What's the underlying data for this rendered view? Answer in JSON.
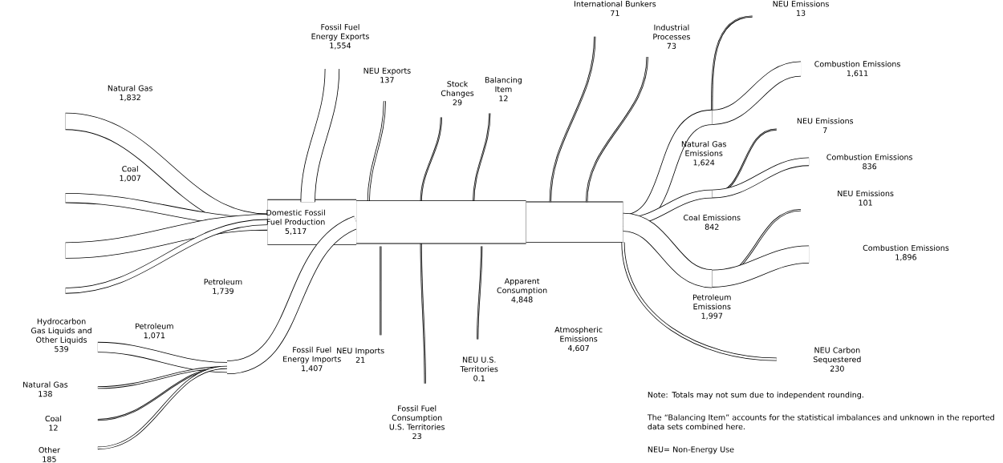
{
  "chart_data": {
    "type": "other",
    "categories": [
      "Natural Gas",
      "Coal",
      "Petroleum",
      "Hydrocarbon Gas Liquids and Other Liquids",
      "Domestic Fossil Fuel Production",
      "Fossil Fuel Energy Imports",
      "Petroleum",
      "Natural Gas",
      "Coal",
      "Other",
      "Fossil Fuel Energy Exports",
      "NEU Exports",
      "Stock Changes",
      "Balancing Item",
      "NEU Imports",
      "Fossil Fuel Consumption U.S. Territories",
      "NEU U.S. Territories",
      "Apparent Consumption",
      "Atmospheric Emissions",
      "International Bunkers",
      "Industrial Processes",
      "NEU Emissions",
      "Combustion Emissions",
      "Natural Gas Emissions",
      "NEU Emissions",
      "Combustion Emissions",
      "Coal Emissions",
      "NEU Emissions",
      "Combustion Emissions",
      "Petroleum Emissions",
      "NEU Carbon Sequestered"
    ],
    "values": [
      1832,
      1007,
      1739,
      539,
      5117,
      1407,
      1071,
      138,
      12,
      185,
      1554,
      137,
      29,
      12,
      21,
      23,
      0.1,
      4848,
      4607,
      71,
      73,
      13,
      1611,
      1624,
      7,
      836,
      842,
      101,
      1896,
      1997,
      230
    ],
    "value_labels": [
      "1,832",
      "1,007",
      "1,739",
      "539",
      "5,117",
      "1,407",
      "1,071",
      "138",
      "12",
      "185",
      "1,554",
      "137",
      "29",
      "12",
      "21",
      "23",
      "0.1",
      "4,848",
      "4,607",
      "71",
      "73",
      "13",
      "1,611",
      "1,624",
      "7",
      "836",
      "842",
      "101",
      "1,896",
      "1,997",
      "230"
    ],
    "annotations": [
      "Note: Totals may not sum due to independent rounding.",
      "The “Balancing Item” accounts for the statistical imbalances and unknown in the reported data sets combined here.",
      "NEU= Non-Energy Use"
    ]
  }
}
